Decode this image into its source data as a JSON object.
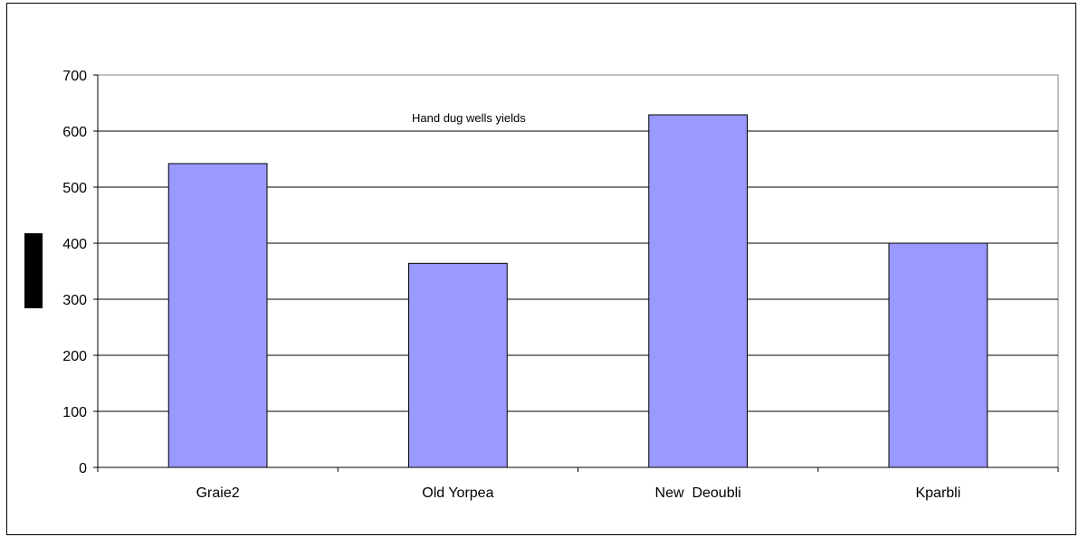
{
  "chart_data": {
    "type": "bar",
    "title": "Hand dug wells yields",
    "xlabel": "",
    "ylabel": "",
    "categories": [
      "Graie2",
      "Old Yorpea",
      "New  Deoubli",
      "Kparbli"
    ],
    "values": [
      542,
      364,
      629,
      400
    ],
    "ylim": [
      0,
      700
    ],
    "yticks": [
      0,
      100,
      200,
      300,
      400,
      500,
      600,
      700
    ],
    "grid": true,
    "legend": "none",
    "colors": {
      "bar": "#9999ff",
      "bar_edge": "#000000",
      "grid": "#000000"
    }
  }
}
